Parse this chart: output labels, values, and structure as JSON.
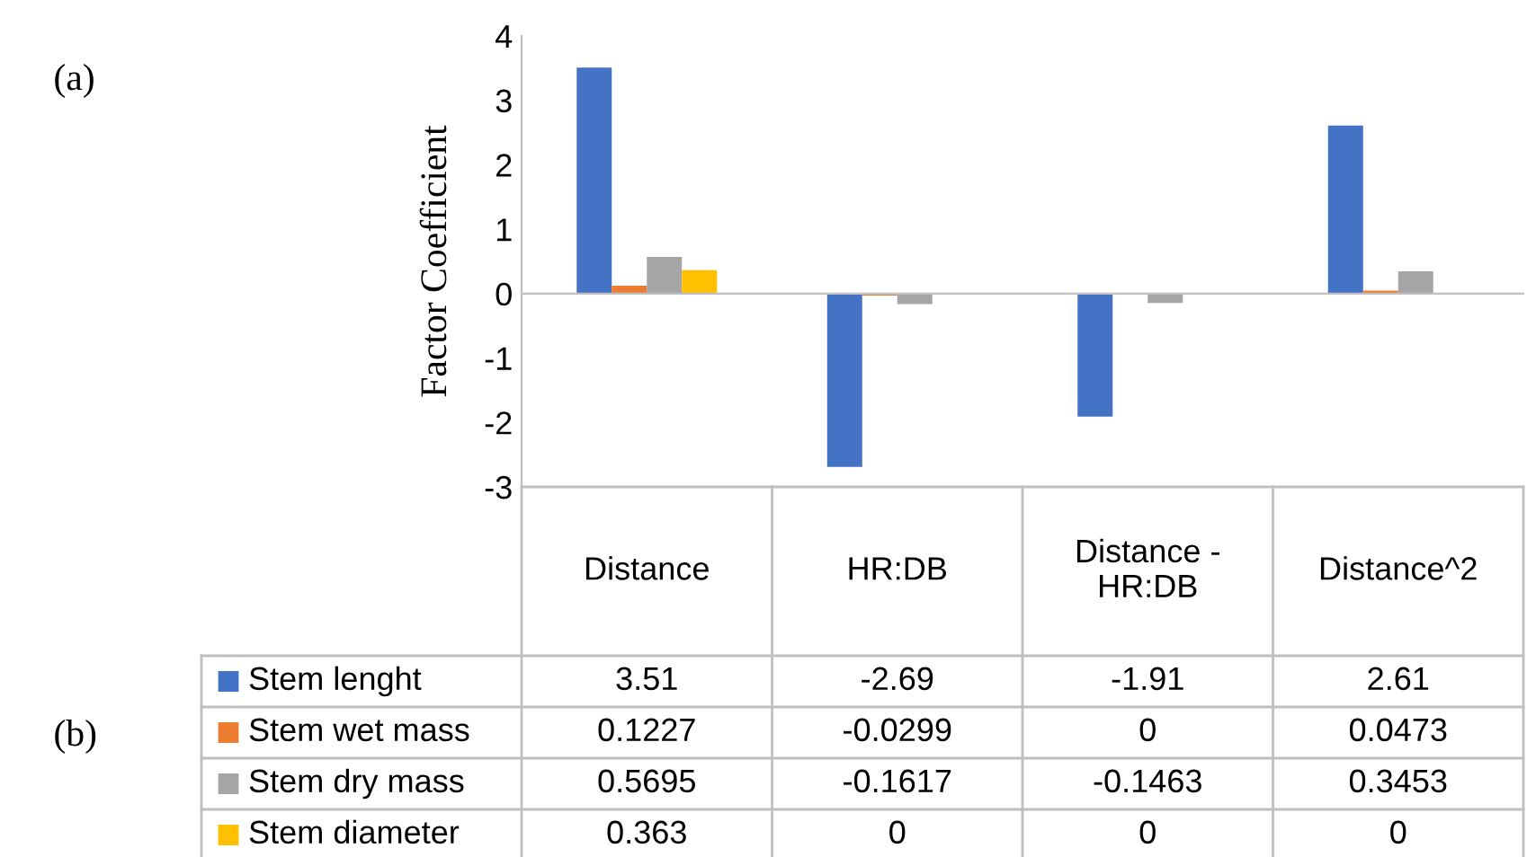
{
  "chart_data": {
    "type": "bar",
    "ylabel": "Factor Coefficient",
    "categories": [
      "Distance",
      "HR:DB",
      "Distance -\nHR:DB",
      "Distance^2"
    ],
    "series": [
      {
        "name": "Stem lenght",
        "color": "#4472c4",
        "values": [
          3.51,
          -2.69,
          -1.91,
          2.61
        ]
      },
      {
        "name": "Stem wet mass",
        "color": "#ed7d31",
        "values": [
          0.1227,
          -0.0299,
          0,
          0.0473
        ]
      },
      {
        "name": "Stem dry mass",
        "color": "#a5a5a5",
        "values": [
          0.5695,
          -0.1617,
          -0.1463,
          0.3453
        ]
      },
      {
        "name": "Stem diameter",
        "color": "#ffc000",
        "values": [
          0.363,
          0,
          0,
          0
        ]
      }
    ],
    "ylim": [
      -3,
      4
    ],
    "yticks": [
      -3,
      -2,
      -1,
      0,
      1,
      2,
      3,
      4
    ],
    "legend": "bottom left",
    "data_labels": true,
    "annotations": [
      "(a)",
      "(b)"
    ]
  }
}
